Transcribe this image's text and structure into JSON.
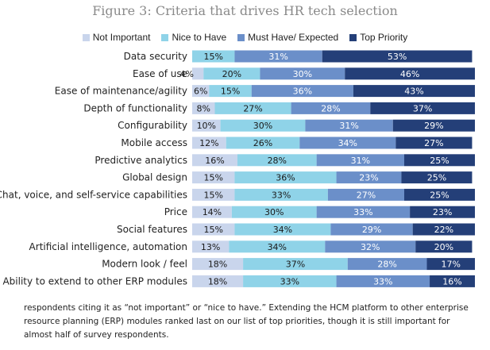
{
  "chart_data": {
    "type": "bar",
    "orientation": "horizontal-stacked",
    "title": "Figure 3: Criteria that drives HR tech selection",
    "categories": [
      "Data security",
      "Ease of use",
      "Ease of maintenance/agility",
      "Depth of functionality",
      "Configurability",
      "Mobile access",
      "Predictive analytics",
      "Global design",
      "Chat, voice, and self-service capabilities",
      "Price",
      "Social features",
      "Artificial intelligence, automation",
      "Modern look / feel",
      "Ability to extend to other ERP modules"
    ],
    "series": [
      {
        "name": "Not Important",
        "color": "#c9d5ec",
        "values": [
          0,
          4,
          6,
          8,
          10,
          12,
          16,
          15,
          15,
          14,
          15,
          13,
          18,
          18
        ],
        "labels": [
          "",
          "4%",
          "6%",
          "8%",
          "10%",
          "12%",
          "16%",
          "15%",
          "15%",
          "14%",
          "15%",
          "13%",
          "18%",
          "18%"
        ]
      },
      {
        "name": "Nice to Have",
        "color": "#8fd3e8",
        "values": [
          15,
          20,
          15,
          27,
          30,
          26,
          28,
          36,
          33,
          30,
          34,
          34,
          37,
          33
        ],
        "labels": [
          "15%",
          "20%",
          "15%",
          "27%",
          "30%",
          "26%",
          "28%",
          "36%",
          "33%",
          "30%",
          "34%",
          "34%",
          "37%",
          "33%"
        ]
      },
      {
        "name": "Must Have/ Expected",
        "color": "#6b8fc9",
        "values": [
          31,
          30,
          36,
          28,
          31,
          34,
          31,
          23,
          27,
          33,
          29,
          32,
          28,
          33
        ],
        "labels": [
          "31%",
          "30%",
          "36%",
          "28%",
          "31%",
          "34%",
          "31%",
          "23%",
          "27%",
          "33%",
          "29%",
          "32%",
          "28%",
          "33%"
        ]
      },
      {
        "name": "Top Priority",
        "color": "#243f78",
        "values": [
          53,
          46,
          43,
          37,
          29,
          27,
          25,
          25,
          25,
          23,
          22,
          20,
          17,
          16
        ],
        "labels": [
          "53%",
          "46%",
          "43%",
          "37%",
          "29%",
          "27%",
          "25%",
          "25%",
          "25%",
          "23%",
          "22%",
          "20%",
          "17%",
          "16%"
        ]
      }
    ],
    "xlim": [
      0,
      100
    ],
    "grid": false,
    "legend_position": "top"
  },
  "footnote": "respondents citing it as “not important” or “nice to have.” Extending the HCM platform to other enterprise resource planning (ERP) modules ranked last on our list of top priorities, though it is still important for almost half of survey respondents."
}
